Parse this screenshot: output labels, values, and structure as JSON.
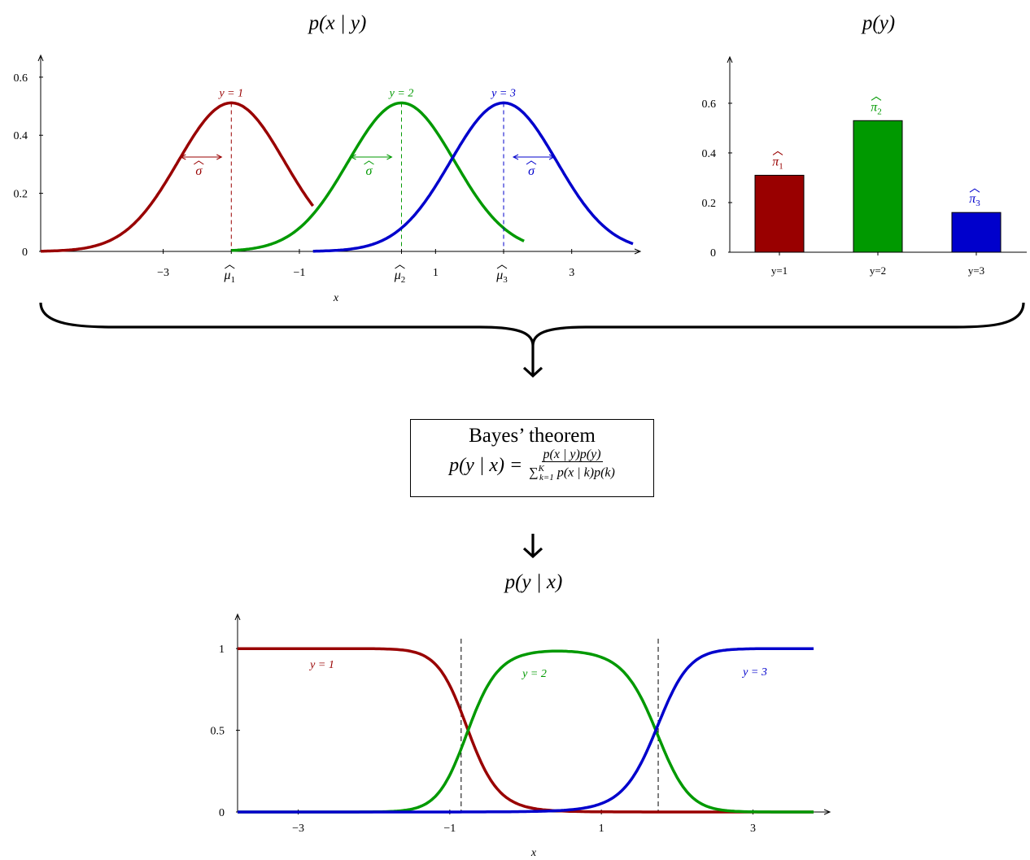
{
  "top_left_title": "p(x | y)",
  "top_right_title": "p(y)",
  "middle_title": "p(y | x)",
  "bayes": {
    "title": "Bayes’ theorem",
    "lhs": "p(y | x) =",
    "numerator": "p(x | y)p(y)",
    "denominator": "∑",
    "denominator_sub": "k=1",
    "denominator_sup": "K",
    "denominator_rest": " p(x | k)p(k)"
  },
  "colors": {
    "class1": "#990000",
    "class2": "#009900",
    "class3": "#0000cc"
  },
  "chart_data": [
    {
      "type": "line",
      "title": "p(x | y)",
      "xlabel": "x",
      "xlim": [
        -4.8,
        3.9
      ],
      "ylim": [
        0,
        0.65
      ],
      "x_ticks": [
        "−3",
        "−1",
        "1",
        "3"
      ],
      "x_tick_values": [
        -3,
        -1,
        1,
        3
      ],
      "mu_labels": [
        "μ̂1",
        "μ̂2",
        "μ̂3"
      ],
      "sigma_label": "σ̂",
      "y_ticks": [
        "0",
        "0.2",
        "0.4",
        "0.6"
      ],
      "y_tick_values": [
        0,
        0.2,
        0.4,
        0.6
      ],
      "series": [
        {
          "name": "y = 1",
          "mu": -2.0,
          "sigma": 0.78,
          "x_range": [
            -4.8,
            -0.8
          ]
        },
        {
          "name": "y = 2",
          "mu": 0.5,
          "sigma": 0.78,
          "x_range": [
            -2.0,
            2.3
          ]
        },
        {
          "name": "y = 3",
          "mu": 2.0,
          "sigma": 0.78,
          "x_range": [
            -0.8,
            3.9
          ]
        }
      ]
    },
    {
      "type": "bar",
      "title": "p(y)",
      "categories": [
        "y=1",
        "y=2",
        "y=3"
      ],
      "values": [
        0.31,
        0.53,
        0.16
      ],
      "bar_labels": [
        "π̂1",
        "π̂2",
        "π̂3"
      ],
      "ylim": [
        0,
        0.78
      ],
      "y_ticks": [
        "0",
        "0.2",
        "0.4",
        "0.6"
      ],
      "y_tick_values": [
        0,
        0.2,
        0.4,
        0.6
      ]
    },
    {
      "type": "line",
      "title": "p(y | x)",
      "xlabel": "x",
      "xlim": [
        -3.8,
        3.8
      ],
      "ylim": [
        0,
        1.2
      ],
      "x_ticks": [
        "−3",
        "−1",
        "1",
        "3"
      ],
      "x_tick_values": [
        -3,
        -1,
        1,
        3
      ],
      "y_ticks": [
        "0",
        "0.5",
        "1"
      ],
      "y_tick_values": [
        0,
        0.5,
        1
      ],
      "boundaries": [
        -0.85,
        1.75
      ],
      "series": [
        {
          "name": "y = 1"
        },
        {
          "name": "y = 2"
        },
        {
          "name": "y = 3"
        }
      ]
    }
  ]
}
